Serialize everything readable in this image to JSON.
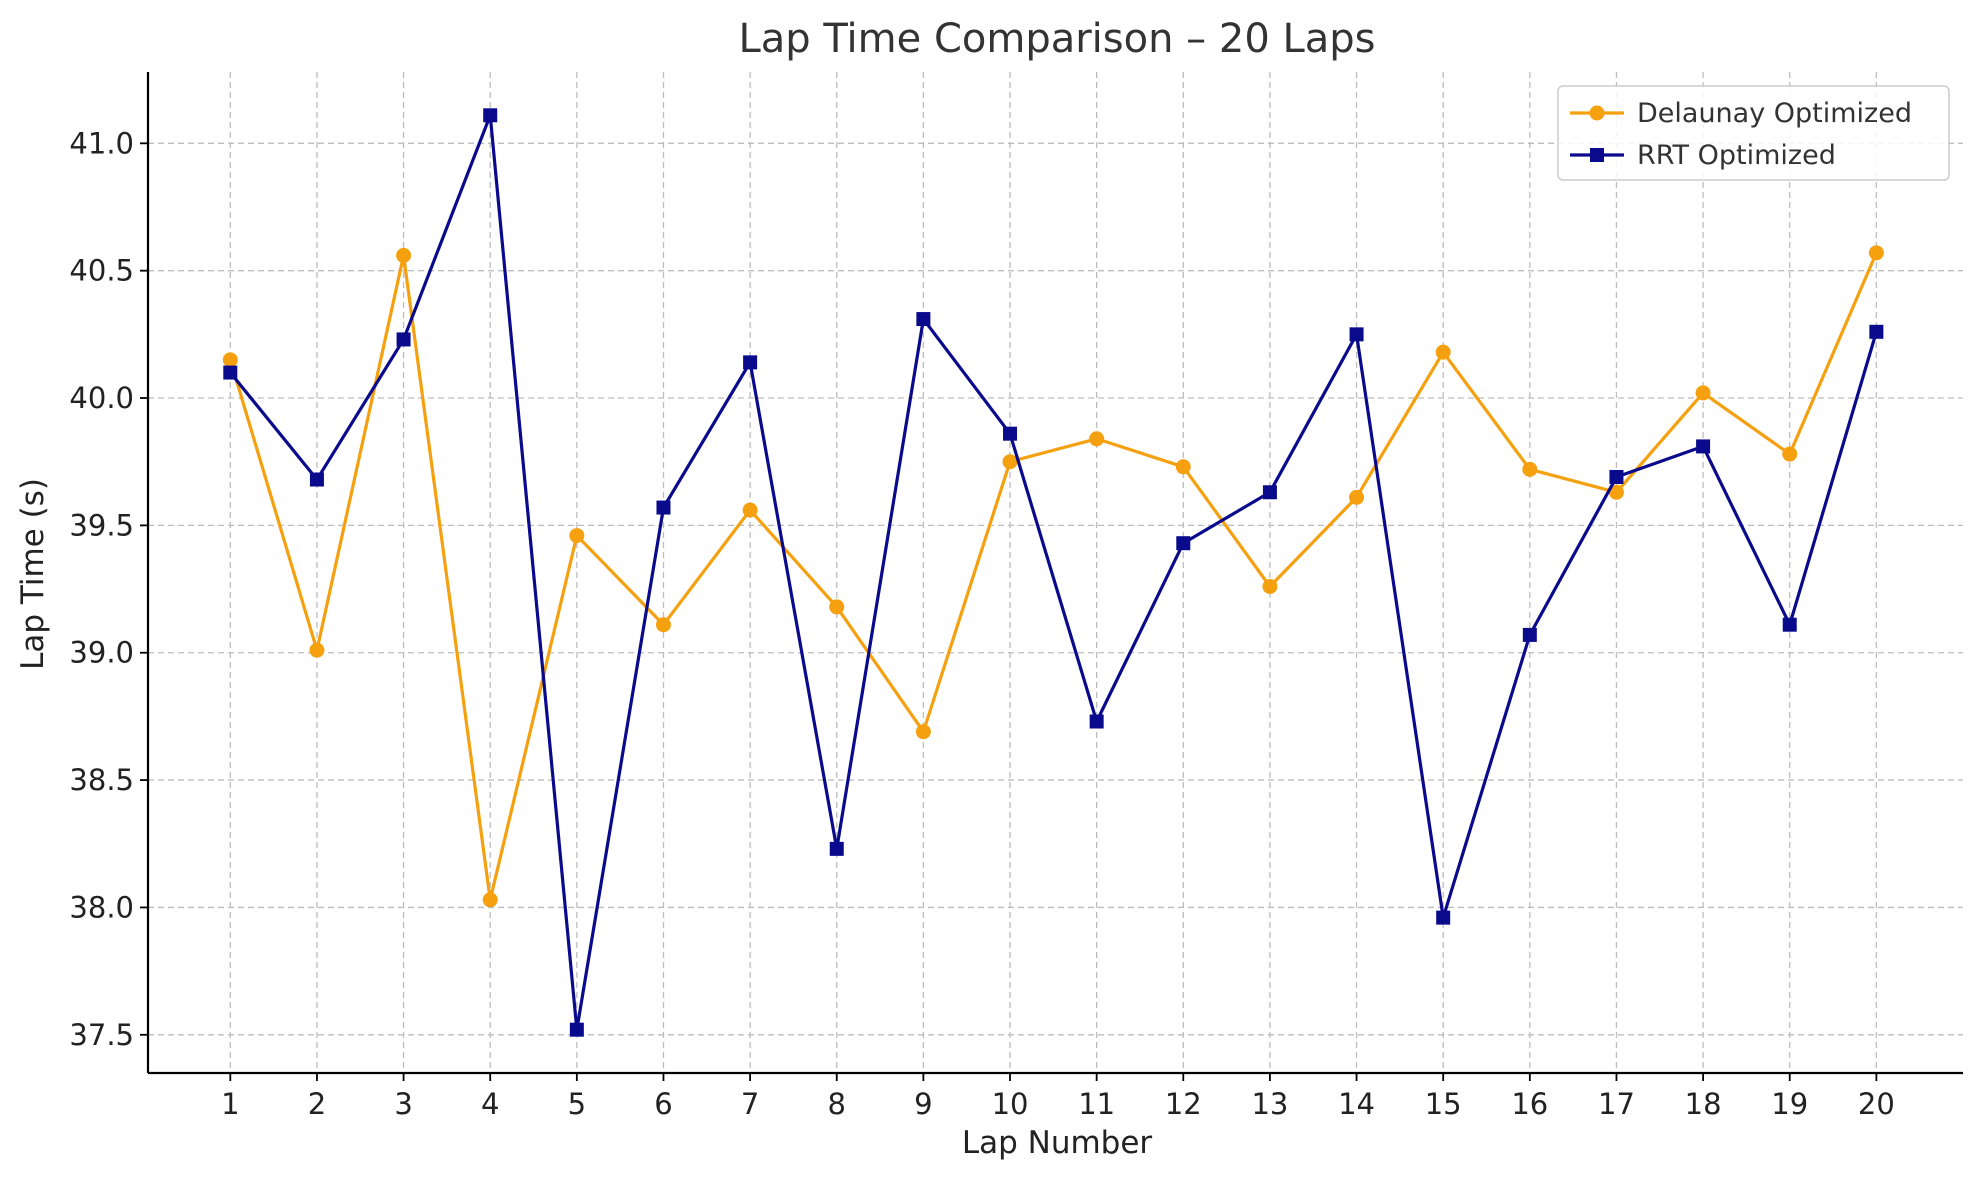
{
  "chart_data": {
    "type": "line",
    "title": "Lap Time Comparison – 20 Laps",
    "xlabel": "Lap Number",
    "ylabel": "Lap Time (s)",
    "x": [
      1,
      2,
      3,
      4,
      5,
      6,
      7,
      8,
      9,
      10,
      11,
      12,
      13,
      14,
      15,
      16,
      17,
      18,
      19,
      20
    ],
    "x_tick_labels": [
      "1",
      "2",
      "3",
      "4",
      "5",
      "6",
      "7",
      "8",
      "9",
      "10",
      "11",
      "12",
      "13",
      "14",
      "15",
      "16",
      "17",
      "18",
      "19",
      "20"
    ],
    "xlim": [
      0.05,
      21.0
    ],
    "ylim": [
      37.35,
      41.28
    ],
    "y_ticks": [
      37.5,
      38.0,
      38.5,
      39.0,
      39.5,
      40.0,
      40.5,
      41.0
    ],
    "y_tick_labels": [
      "37.5",
      "38.0",
      "38.5",
      "39.0",
      "39.5",
      "40.0",
      "40.5",
      "41.0"
    ],
    "grid": true,
    "legend_position": "top-right",
    "series": [
      {
        "name": "Delaunay Optimized",
        "color": "#f5a00f",
        "marker": "circle",
        "values": [
          40.15,
          39.01,
          40.56,
          38.03,
          39.46,
          39.11,
          39.56,
          39.18,
          38.69,
          39.75,
          39.84,
          39.73,
          39.26,
          39.61,
          40.18,
          39.72,
          39.63,
          40.02,
          39.78,
          40.57
        ]
      },
      {
        "name": "RRT Optimized",
        "color": "#0a0a8c",
        "marker": "square",
        "values": [
          40.1,
          39.68,
          40.23,
          41.11,
          37.52,
          39.57,
          40.14,
          38.23,
          40.31,
          39.86,
          38.73,
          39.43,
          39.63,
          40.25,
          37.96,
          39.07,
          39.69,
          39.81,
          39.11,
          40.26
        ]
      }
    ]
  }
}
